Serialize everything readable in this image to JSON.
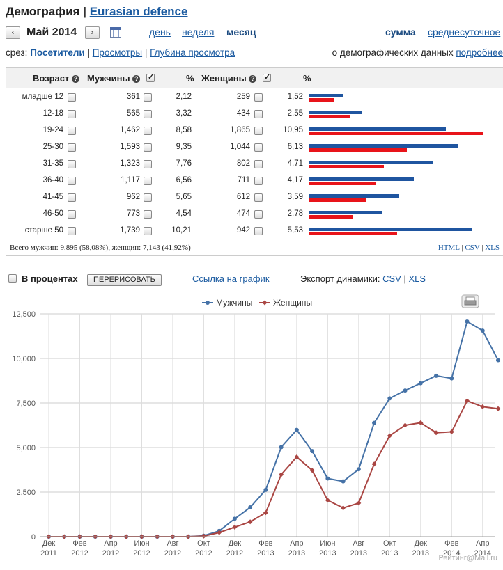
{
  "header": {
    "title": "Демография",
    "separator": "|",
    "site": "Eurasian defence"
  },
  "nav": {
    "prev": "‹",
    "next": "›",
    "month": "Май 2014",
    "periods": [
      "день",
      "неделя",
      "месяц"
    ],
    "active_period": "месяц",
    "modes": [
      "сумма",
      "среднесуточное"
    ]
  },
  "slice": {
    "label": "срез:",
    "items": [
      "Посетители",
      "Просмотры",
      "Глубина просмотра"
    ],
    "demo_text": "о демографических данных",
    "demo_link": "подробнее"
  },
  "table": {
    "headers": {
      "age": "Возраст",
      "men": "Мужчины",
      "pct1": "%",
      "women": "Женщины",
      "pct2": "%"
    },
    "rows": [
      {
        "age": "младше 12",
        "men": "361",
        "men_pct": "2,12",
        "women": "259",
        "women_pct": "1,52"
      },
      {
        "age": "12-18",
        "men": "565",
        "men_pct": "3,32",
        "women": "434",
        "women_pct": "2,55"
      },
      {
        "age": "19-24",
        "men": "1,462",
        "men_pct": "8,58",
        "women": "1,865",
        "women_pct": "10,95"
      },
      {
        "age": "25-30",
        "men": "1,593",
        "men_pct": "9,35",
        "women": "1,044",
        "women_pct": "6,13"
      },
      {
        "age": "31-35",
        "men": "1,323",
        "men_pct": "7,76",
        "women": "802",
        "women_pct": "4,71"
      },
      {
        "age": "36-40",
        "men": "1,117",
        "men_pct": "6,56",
        "women": "711",
        "women_pct": "4,17"
      },
      {
        "age": "41-45",
        "men": "962",
        "men_pct": "5,65",
        "women": "612",
        "women_pct": "3,59"
      },
      {
        "age": "46-50",
        "men": "773",
        "men_pct": "4,54",
        "women": "474",
        "women_pct": "2,78"
      },
      {
        "age": "старше 50",
        "men": "1,739",
        "men_pct": "10,21",
        "women": "942",
        "women_pct": "5,53"
      }
    ],
    "footer": "Всего мужчин: 9,895 (58,08%), женщин: 7,143 (41,92%)",
    "exports": [
      "HTML",
      "CSV",
      "XLS"
    ],
    "colors": {
      "men": "#1f55a0",
      "women": "#e8141a"
    }
  },
  "controls": {
    "percent_label": "В процентах",
    "redraw": "ПЕРЕРИСОВАТЬ",
    "chart_link": "Ссылка на график",
    "export_label": "Экспорт динамики:",
    "export_csv": "CSV",
    "export_xls": "XLS"
  },
  "watermark": "Рейтинг@Mail.ru",
  "chart_data": {
    "type": "line",
    "x": [
      "Дек 2011",
      "Янв 2012",
      "Фев 2012",
      "Мар 2012",
      "Апр 2012",
      "Май 2012",
      "Июн 2012",
      "Июл 2012",
      "Авг 2012",
      "Сен 2012",
      "Окт 2012",
      "Ноя 2012",
      "Дек 2012",
      "Янв 2013",
      "Фев 2013",
      "Мар 2013",
      "Апр 2013",
      "Май 2013",
      "Июн 2013",
      "Июл 2013",
      "Авг 2013",
      "Сен 2013",
      "Окт 2013",
      "Ноя 2013",
      "Дек 2013",
      "Янв 2014",
      "Фев 2014",
      "Мар 2014",
      "Апр 2014",
      "Май 2014"
    ],
    "tick_labels": [
      [
        "Дек",
        "2011"
      ],
      [
        "Фев",
        "2012"
      ],
      [
        "Апр",
        "2012"
      ],
      [
        "Июн",
        "2012"
      ],
      [
        "Авг",
        "2012"
      ],
      [
        "Окт",
        "2012"
      ],
      [
        "Дек",
        "2012"
      ],
      [
        "Фев",
        "2013"
      ],
      [
        "Апр",
        "2013"
      ],
      [
        "Июн",
        "2013"
      ],
      [
        "Авг",
        "2013"
      ],
      [
        "Окт",
        "2013"
      ],
      [
        "Дек",
        "2013"
      ],
      [
        "Фев",
        "2014"
      ],
      [
        "Апр",
        "2014"
      ]
    ],
    "series": [
      {
        "name": "Мужчины",
        "color": "#4572a7",
        "values": [
          0,
          0,
          0,
          0,
          0,
          0,
          0,
          0,
          0,
          0,
          50,
          320,
          1000,
          1640,
          2620,
          5020,
          5990,
          4800,
          3260,
          3100,
          3780,
          6380,
          7760,
          8200,
          8610,
          9030,
          8880,
          12070,
          11560,
          9900
        ]
      },
      {
        "name": "Женщины",
        "color": "#aa4643",
        "values": [
          0,
          0,
          0,
          0,
          0,
          0,
          0,
          0,
          0,
          0,
          30,
          230,
          530,
          830,
          1340,
          3480,
          4470,
          3720,
          2040,
          1610,
          1880,
          4070,
          5660,
          6250,
          6390,
          5830,
          5880,
          7620,
          7290,
          7180
        ]
      }
    ],
    "yticks": [
      "0",
      "2,500",
      "5,000",
      "7,500",
      "10,000",
      "12,500"
    ],
    "ylim": [
      0,
      12500
    ],
    "grid": true,
    "legend": "top-center"
  }
}
